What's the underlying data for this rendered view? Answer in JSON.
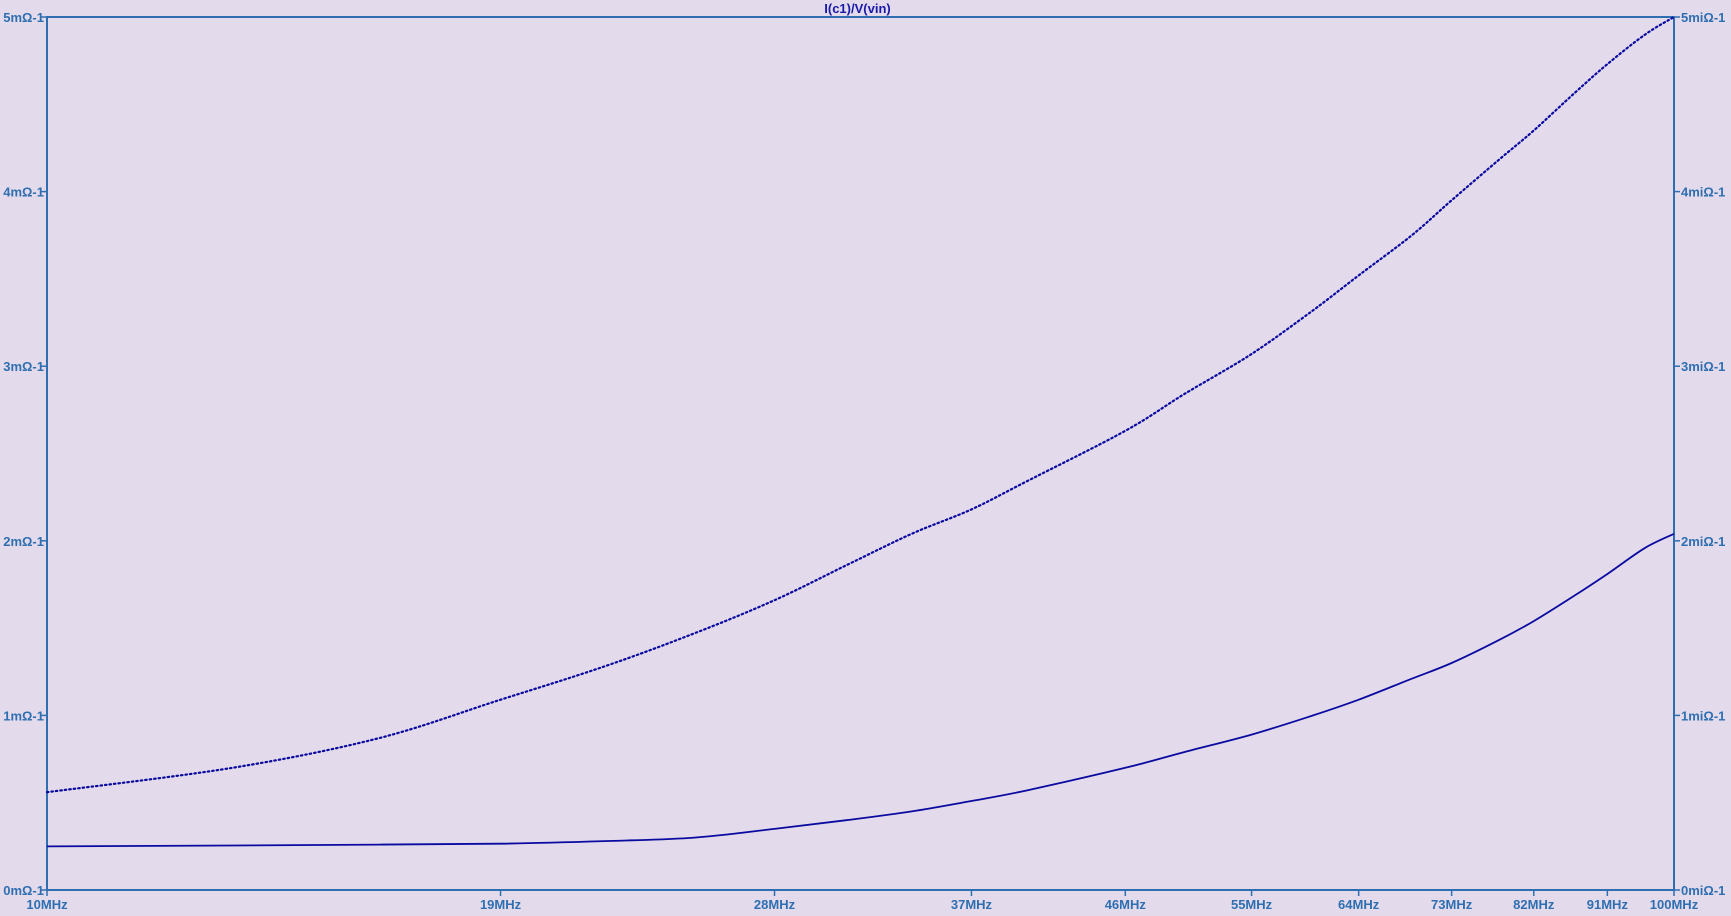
{
  "colors": {
    "background": "#e3dbeb",
    "axis": "#2f6fb1",
    "tick_text": "#2f6fb1",
    "title_text": "#1a1aa8",
    "trace": "#0a0aa0"
  },
  "chart_data": {
    "type": "line",
    "title": "I(c1)/V(vin)",
    "x_scale": "log",
    "xlim": [
      10,
      100
    ],
    "x_unit": "MHz",
    "x_ticks": [
      {
        "value": 10,
        "label": "10MHz"
      },
      {
        "value": 19,
        "label": "19MHz"
      },
      {
        "value": 28,
        "label": "28MHz"
      },
      {
        "value": 37,
        "label": "37MHz"
      },
      {
        "value": 46,
        "label": "46MHz"
      },
      {
        "value": 55,
        "label": "55MHz"
      },
      {
        "value": 64,
        "label": "64MHz"
      },
      {
        "value": 73,
        "label": "73MHz"
      },
      {
        "value": 82,
        "label": "82MHz"
      },
      {
        "value": 91,
        "label": "91MHz"
      },
      {
        "value": 100,
        "label": "100MHz"
      }
    ],
    "y_left": {
      "lim": [
        0,
        5
      ],
      "ticks": [
        {
          "value": 0,
          "label": "0mΩ-1"
        },
        {
          "value": 1,
          "label": "1mΩ-1"
        },
        {
          "value": 2,
          "label": "2mΩ-1"
        },
        {
          "value": 3,
          "label": "3mΩ-1"
        },
        {
          "value": 4,
          "label": "4mΩ-1"
        },
        {
          "value": 5,
          "label": "5mΩ-1"
        }
      ]
    },
    "y_right": {
      "lim": [
        0,
        5
      ],
      "ticks": [
        {
          "value": 0,
          "label": "0miΩ-1"
        },
        {
          "value": 1,
          "label": "1miΩ-1"
        },
        {
          "value": 2,
          "label": "2miΩ-1"
        },
        {
          "value": 3,
          "label": "3miΩ-1"
        },
        {
          "value": 4,
          "label": "4miΩ-1"
        },
        {
          "value": 5,
          "label": "5miΩ-1"
        }
      ]
    },
    "grid": false,
    "series": [
      {
        "style": "solid",
        "axis": "left",
        "x": [
          10,
          13,
          16,
          19,
          22,
          25,
          28,
          31,
          34,
          37,
          40,
          46,
          50,
          55,
          60,
          64,
          69,
          73,
          78,
          82,
          87,
          91,
          96,
          100
        ],
        "y": [
          0.25,
          0.255,
          0.26,
          0.265,
          0.28,
          0.3,
          0.35,
          0.4,
          0.45,
          0.51,
          0.57,
          0.7,
          0.79,
          0.89,
          1.0,
          1.09,
          1.21,
          1.3,
          1.43,
          1.54,
          1.69,
          1.81,
          1.96,
          2.04
        ]
      },
      {
        "style": "dotted",
        "axis": "left",
        "x": [
          10,
          13,
          16,
          19,
          22,
          25,
          28,
          31,
          34,
          37,
          40,
          46,
          50,
          55,
          60,
          64,
          69,
          73,
          78,
          82,
          87,
          91,
          96,
          100
        ],
        "y": [
          0.56,
          0.7,
          0.87,
          1.09,
          1.28,
          1.47,
          1.66,
          1.86,
          2.04,
          2.18,
          2.34,
          2.63,
          2.84,
          3.07,
          3.32,
          3.52,
          3.75,
          3.95,
          4.18,
          4.35,
          4.57,
          4.73,
          4.9,
          5.0
        ]
      }
    ]
  }
}
